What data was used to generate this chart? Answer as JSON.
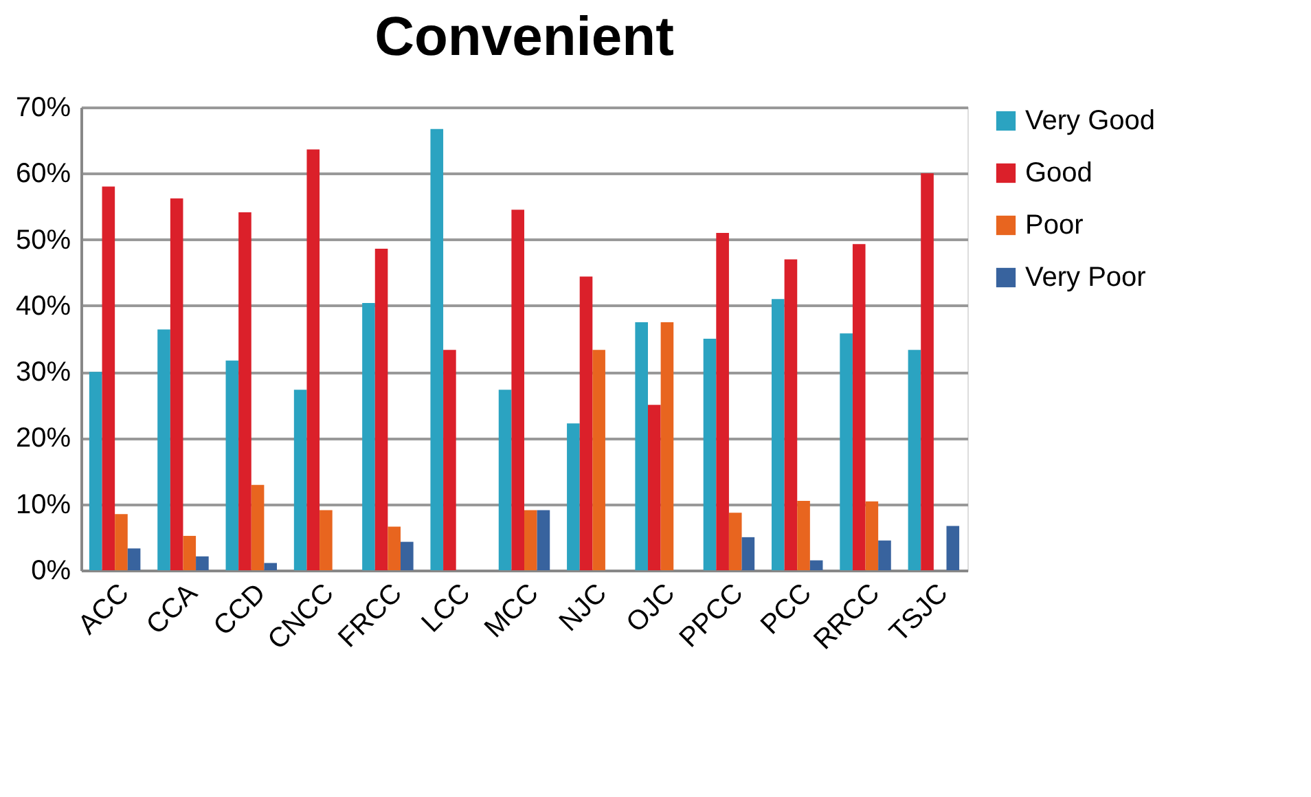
{
  "chart_data": {
    "type": "bar",
    "title": "Convenient",
    "categories": [
      "ACC",
      "CCA",
      "CCD",
      "CNCC",
      "FRCC",
      "LCC",
      "MCC",
      "NJC",
      "OJC",
      "PPCC",
      "PCC",
      "RRCC",
      "TSJC"
    ],
    "series": [
      {
        "name": "Very Good",
        "color": "#2ba3c1",
        "values": [
          30,
          36.4,
          31.7,
          27.3,
          40.4,
          66.7,
          27.3,
          22.2,
          37.5,
          35,
          41,
          35.8,
          33.3
        ]
      },
      {
        "name": "Good",
        "color": "#db202a",
        "values": [
          58,
          56.2,
          54.1,
          63.6,
          48.6,
          33.3,
          54.5,
          44.4,
          25,
          51,
          47,
          49.3,
          60
        ]
      },
      {
        "name": "Poor",
        "color": "#e8651f",
        "values": [
          8.5,
          5.2,
          12.9,
          9.1,
          6.6,
          0,
          9.1,
          33.3,
          37.5,
          8.7,
          10.5,
          10.4,
          0
        ]
      },
      {
        "name": "Very Poor",
        "color": "#38639e",
        "values": [
          3.3,
          2.1,
          1.1,
          0,
          4.3,
          0,
          9.1,
          0,
          0,
          5,
          1.5,
          4.5,
          6.7
        ]
      }
    ],
    "ylim": [
      0,
      70
    ],
    "yticks": [
      {
        "value": 0,
        "label": "0%"
      },
      {
        "value": 10,
        "label": "10%"
      },
      {
        "value": 20,
        "label": "20%"
      },
      {
        "value": 30,
        "label": "30%"
      },
      {
        "value": 40,
        "label": "40%"
      },
      {
        "value": 50,
        "label": "50%"
      },
      {
        "value": 60,
        "label": "60%"
      },
      {
        "value": 70,
        "label": "70%"
      }
    ],
    "grid": "y",
    "legend": "right"
  }
}
